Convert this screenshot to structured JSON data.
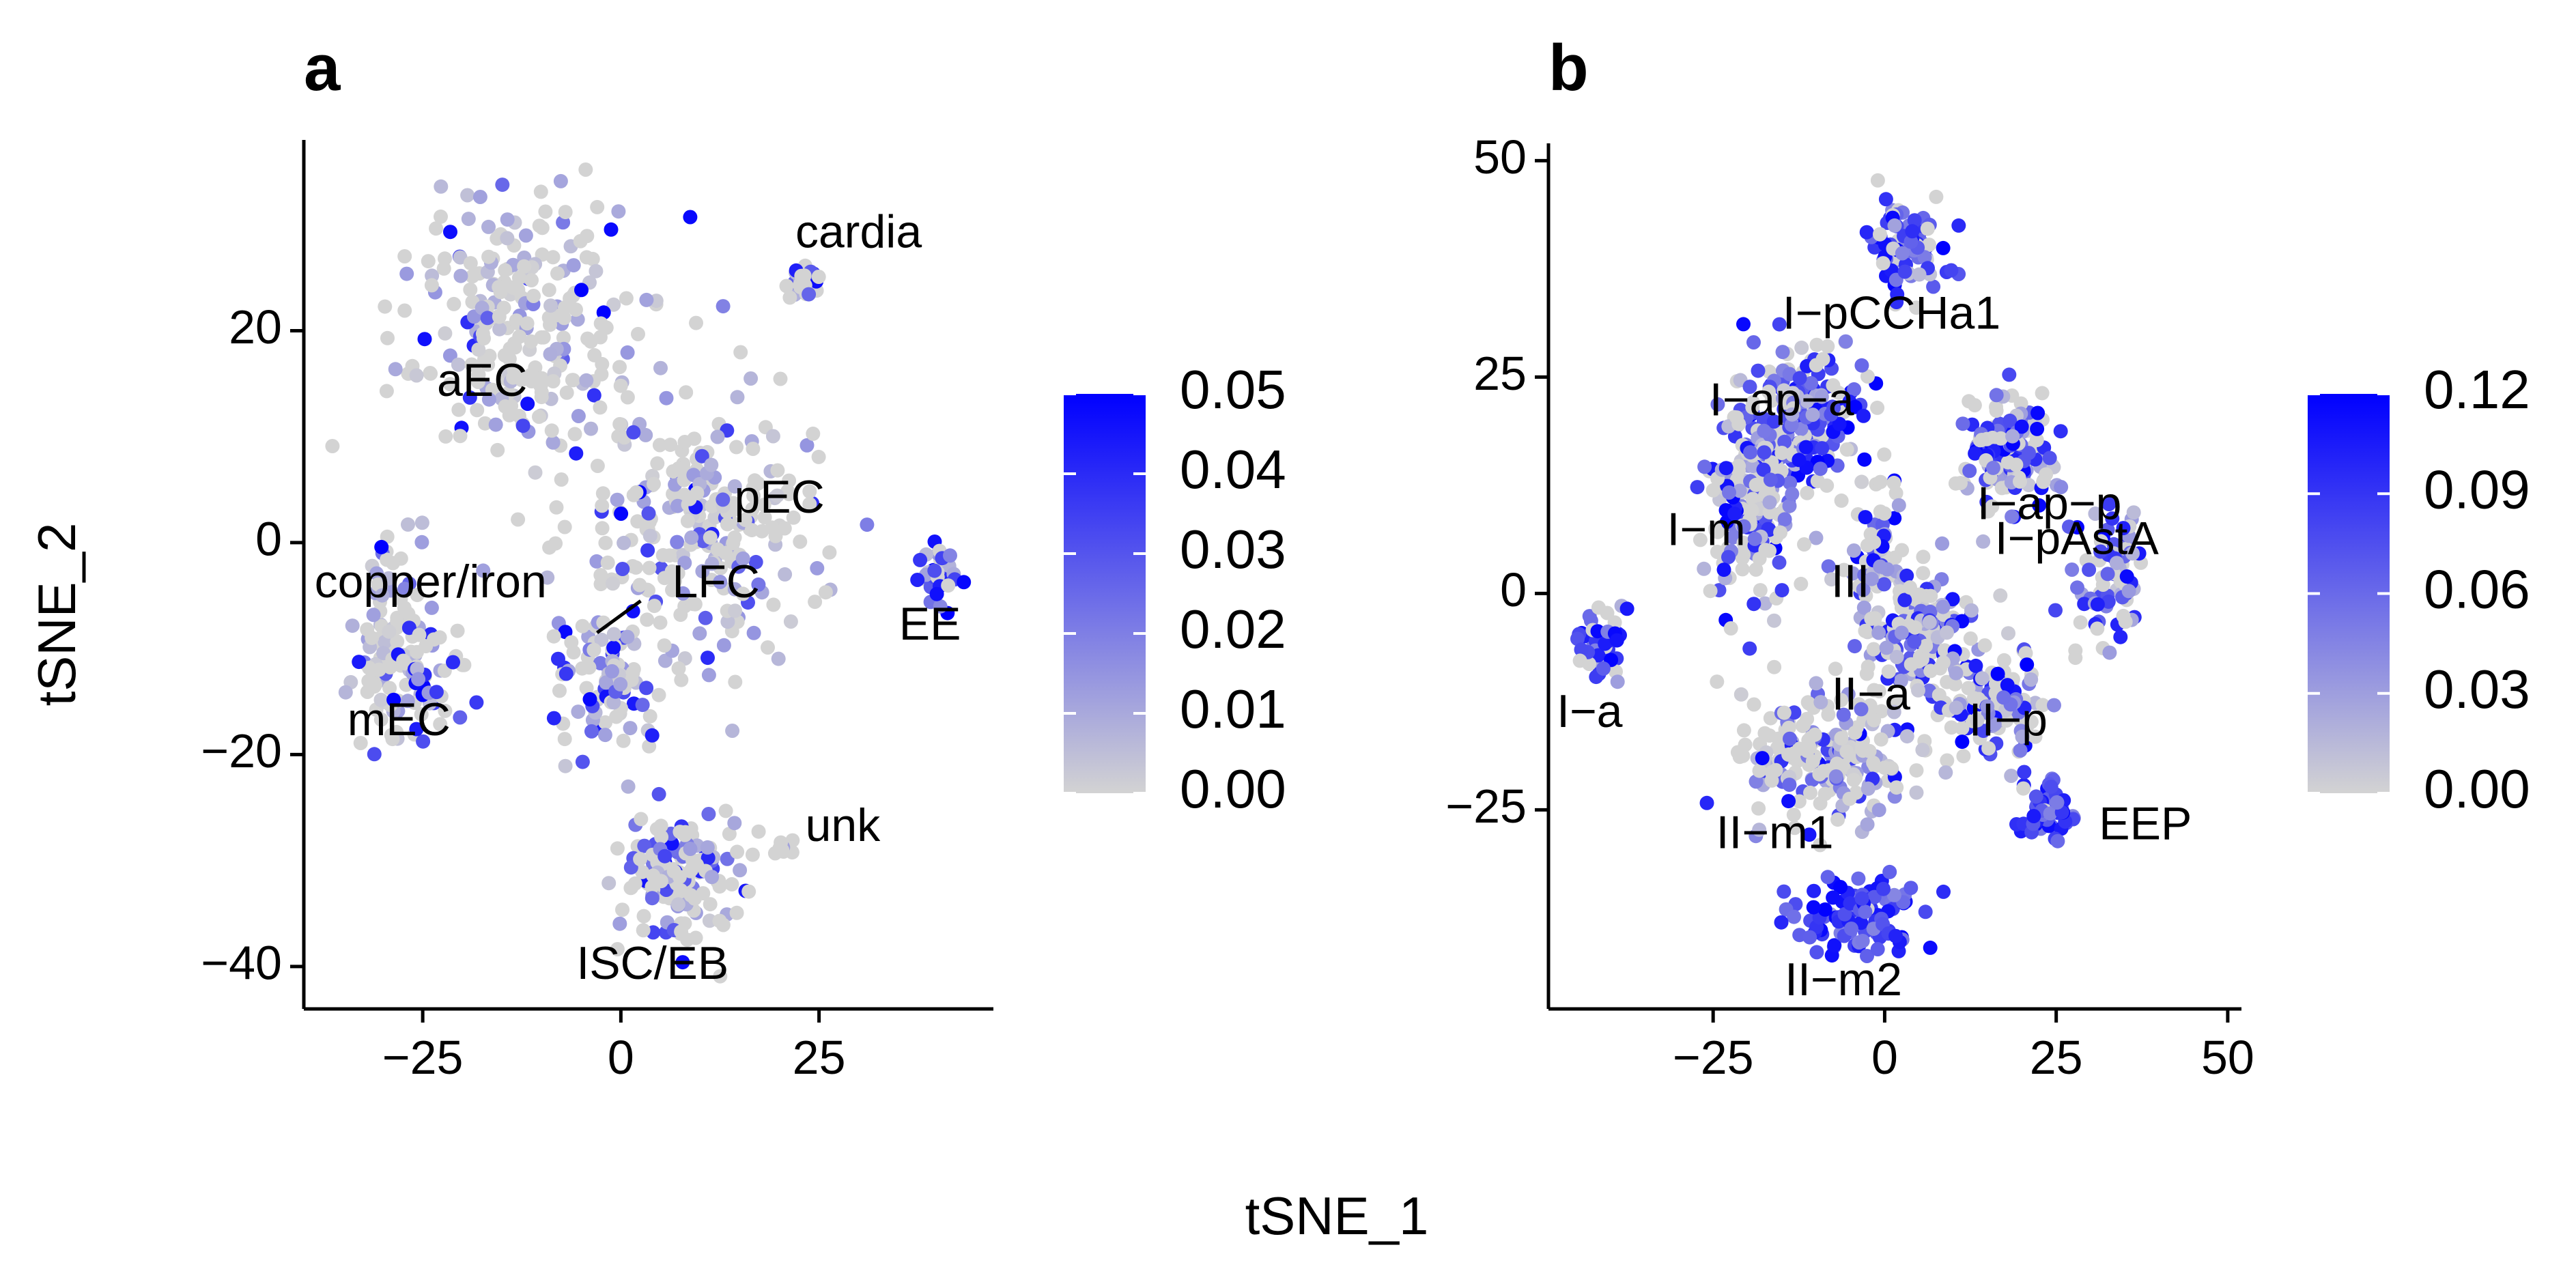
{
  "chart_data": [
    {
      "type": "scatter",
      "panel_label": "a",
      "xlabel": "tSNE_1",
      "ylabel": "tSNE_2",
      "xlim": [
        -40,
        47
      ],
      "ylim": [
        -44,
        38
      ],
      "xticks": [
        {
          "v": -25,
          "label": "−25"
        },
        {
          "v": 0,
          "label": "0"
        },
        {
          "v": 25,
          "label": "25"
        }
      ],
      "yticks": [
        {
          "v": -40,
          "label": "−40"
        },
        {
          "v": -20,
          "label": "−20"
        },
        {
          "v": 0,
          "label": "0"
        },
        {
          "v": 20,
          "label": "20"
        }
      ],
      "colorbar": {
        "ticks": [
          "0.00",
          "0.01",
          "0.02",
          "0.03",
          "0.04",
          "0.05"
        ],
        "min": 0,
        "max": 0.05,
        "low_color": "#d3d3d3",
        "high_color": "#0000ff"
      },
      "clusters": [
        {
          "label": "aEC",
          "x": -13,
          "y": 20,
          "sx": 10,
          "sy": 8,
          "n": 260,
          "high": 0.12
        },
        {
          "label": "copper/iron",
          "x": -29,
          "y": -8,
          "sx": 3.5,
          "sy": 6,
          "n": 80,
          "high": 0.2
        },
        {
          "label": "mEC",
          "x": -26,
          "y": -13,
          "sx": 5,
          "sy": 4,
          "n": 70,
          "high": 0.25
        },
        {
          "label": "pEC",
          "x": 10,
          "y": 1,
          "sx": 10,
          "sy": 8,
          "n": 260,
          "high": 0.1
        },
        {
          "label": "LFC",
          "x": -2,
          "y": -13,
          "sx": 5,
          "sy": 6,
          "n": 90,
          "high": 0.2
        },
        {
          "label": "cardia",
          "x": 23,
          "y": 25,
          "sx": 1.5,
          "sy": 1.2,
          "n": 25,
          "high": 0.3
        },
        {
          "label": "EE",
          "x": 40,
          "y": -3,
          "sx": 1.5,
          "sy": 2,
          "n": 35,
          "high": 0.7
        },
        {
          "label": "unk",
          "x": 21,
          "y": -29,
          "sx": 1,
          "sy": 0.8,
          "n": 8,
          "high": 0.0
        },
        {
          "label": "ISC/EB",
          "x": 8,
          "y": -31,
          "sx": 5,
          "sy": 4.5,
          "n": 150,
          "high": 0.25
        }
      ],
      "labels": [
        {
          "text": "cardia",
          "x": 30,
          "y": 29
        },
        {
          "text": "aEC",
          "x": -17.5,
          "y": 15
        },
        {
          "text": "pEC",
          "x": 20,
          "y": 4
        },
        {
          "text": "copper/iron",
          "x": -24,
          "y": -4
        },
        {
          "text": "LFC",
          "x": 12,
          "y": -4
        },
        {
          "text": "EE",
          "x": 39,
          "y": -8
        },
        {
          "text": "mEC",
          "x": -28,
          "y": -17
        },
        {
          "text": "unk",
          "x": 28,
          "y": -27
        },
        {
          "text": "ISC/EB",
          "x": 4,
          "y": -40
        }
      ],
      "pointer": {
        "from": [
          2.5,
          -5.5
        ],
        "to": [
          -3,
          -8.5
        ]
      }
    },
    {
      "type": "scatter",
      "panel_label": "b",
      "xlabel": "tSNE_1",
      "ylabel": "",
      "xlim": [
        -49,
        52
      ],
      "ylim": [
        -48,
        52
      ],
      "xticks": [
        {
          "v": -25,
          "label": "−25"
        },
        {
          "v": 0,
          "label": "0"
        },
        {
          "v": 25,
          "label": "25"
        },
        {
          "v": 50,
          "label": "50"
        }
      ],
      "yticks": [
        {
          "v": -25,
          "label": "−25"
        },
        {
          "v": 0,
          "label": "0"
        },
        {
          "v": 25,
          "label": "25"
        },
        {
          "v": 50,
          "label": "50"
        }
      ],
      "colorbar": {
        "ticks": [
          "0.00",
          "0.03",
          "0.06",
          "0.09",
          "0.12"
        ],
        "min": 0,
        "max": 0.12,
        "low_color": "#d3d3d3",
        "high_color": "#0000ff"
      },
      "clusters": [
        {
          "label": "I−pCCHa1",
          "x": 3,
          "y": 40,
          "sx": 4,
          "sy": 3.5,
          "n": 90,
          "high": 0.7
        },
        {
          "label": "I−ap−a",
          "x": -12,
          "y": 21,
          "sx": 5,
          "sy": 5,
          "n": 190,
          "high": 0.7
        },
        {
          "label": "I−m",
          "x": -19,
          "y": 10,
          "sx": 5,
          "sy": 8,
          "n": 190,
          "high": 0.35
        },
        {
          "label": "I−ap−p",
          "x": 18,
          "y": 16,
          "sx": 5,
          "sy": 4,
          "n": 150,
          "high": 0.55
        },
        {
          "label": "I−pAstA",
          "x": 33,
          "y": 2,
          "sx": 3.5,
          "sy": 6,
          "n": 80,
          "high": 0.5
        },
        {
          "label": "III",
          "x": -1,
          "y": 5,
          "sx": 3,
          "sy": 5,
          "n": 70,
          "high": 0.25
        },
        {
          "label": "I−a",
          "x": -42,
          "y": -6,
          "sx": 2.5,
          "sy": 2.5,
          "n": 45,
          "high": 0.8
        },
        {
          "label": "II−a",
          "x": 5,
          "y": -5,
          "sx": 6,
          "sy": 5,
          "n": 160,
          "high": 0.35
        },
        {
          "label": "II−p",
          "x": 16,
          "y": -13,
          "sx": 5,
          "sy": 4,
          "n": 110,
          "high": 0.35
        },
        {
          "label": "II−m1",
          "x": -8,
          "y": -19,
          "sx": 8,
          "sy": 5,
          "n": 210,
          "high": 0.25
        },
        {
          "label": "EEP",
          "x": 24,
          "y": -25,
          "sx": 3,
          "sy": 2,
          "n": 60,
          "high": 0.95
        },
        {
          "label": "II−m2",
          "x": -3,
          "y": -37,
          "sx": 6,
          "sy": 3,
          "n": 110,
          "high": 0.95
        }
      ],
      "labels": [
        {
          "text": "I−pCCHa1",
          "x": 1,
          "y": 32
        },
        {
          "text": "I−ap−a",
          "x": -15,
          "y": 22
        },
        {
          "text": "I−ap−p",
          "x": 24,
          "y": 10
        },
        {
          "text": "I−pAstA",
          "x": 28,
          "y": 6
        },
        {
          "text": "I−m",
          "x": -26,
          "y": 7
        },
        {
          "text": "III",
          "x": -5,
          "y": 1
        },
        {
          "text": "I−a",
          "x": -43,
          "y": -14
        },
        {
          "text": "II−a",
          "x": -2,
          "y": -12
        },
        {
          "text": "II−p",
          "x": 18,
          "y": -15
        },
        {
          "text": "EEP",
          "x": 38,
          "y": -27
        },
        {
          "text": "II−m1",
          "x": -16,
          "y": -28
        },
        {
          "text": "II−m2",
          "x": -6,
          "y": -45
        }
      ]
    }
  ],
  "shared_xlabel": "tSNE_1"
}
